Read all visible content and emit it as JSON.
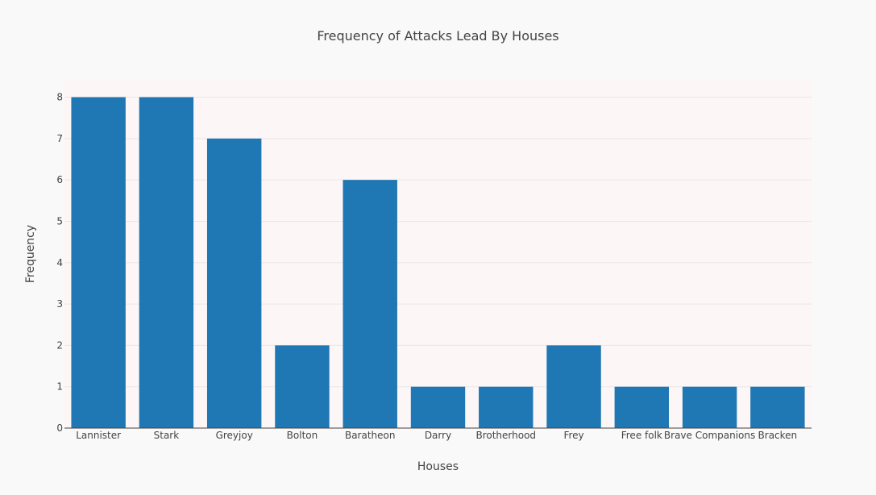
{
  "chart_data": {
    "type": "bar",
    "title": "Frequency of Attacks Lead By Houses",
    "xlabel": "Houses",
    "ylabel": "Frequency",
    "categories": [
      "Lannister",
      "Stark",
      "Greyjoy",
      "Bolton",
      "Baratheon",
      "Darry",
      "Brotherhood",
      "Frey",
      "Free folk",
      "Brave Companions",
      "Bracken"
    ],
    "values": [
      8,
      8,
      7,
      2,
      6,
      1,
      1,
      2,
      1,
      1,
      1
    ],
    "ylim": [
      0,
      8.4
    ],
    "yticks": [
      0,
      1,
      2,
      3,
      4,
      5,
      6,
      7,
      8
    ],
    "grid": true,
    "legend": "none"
  },
  "colors": {
    "bar": "#1f77b4",
    "plot_background": "#fdf6f6",
    "page_background": "#f9f9f9",
    "grid": "#ebe6e6",
    "axis": "#444444",
    "text": "#444444"
  }
}
